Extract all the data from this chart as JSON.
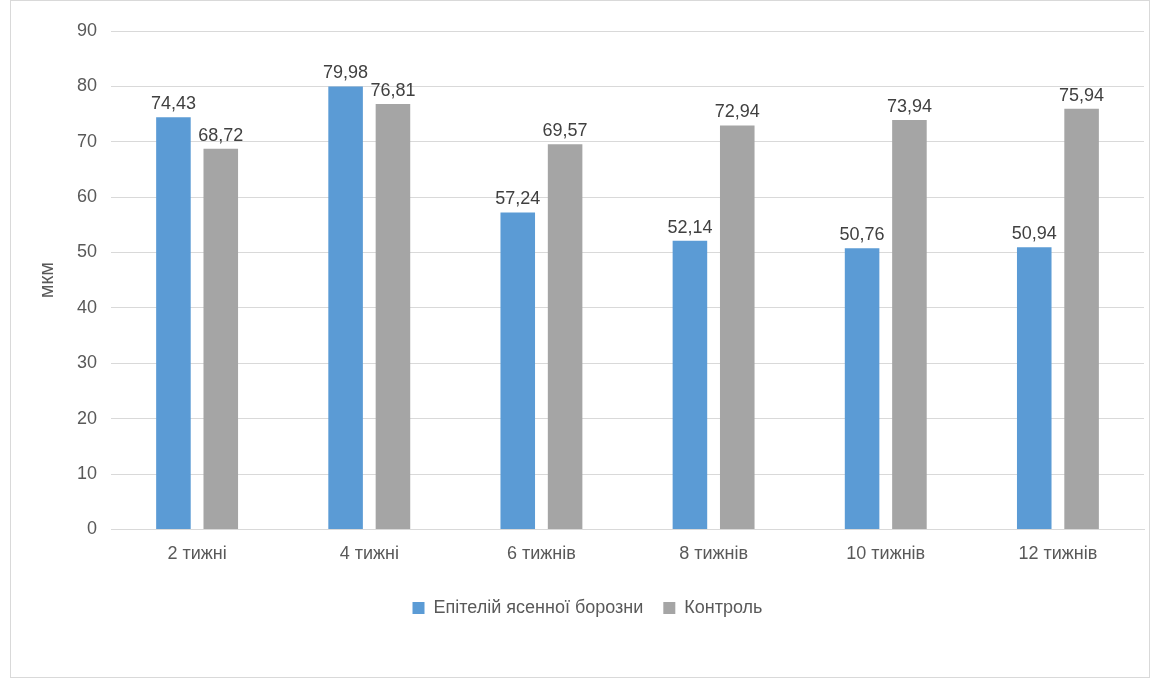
{
  "chart_data": {
    "type": "bar",
    "ylabel": "мкм",
    "categories": [
      "2 тижні",
      "4 тижні",
      "6 тижнів",
      "8 тижнів",
      "10 тижнів",
      "12 тижнів"
    ],
    "series": [
      {
        "name": "Епітелій ясенної борозни",
        "color": "#5b9bd5",
        "values": [
          74.43,
          79.98,
          57.24,
          52.14,
          50.76,
          50.94
        ],
        "value_labels": [
          "74,43",
          "79,98",
          "57,24",
          "52,14",
          "50,76",
          "50,94"
        ]
      },
      {
        "name": "Контроль",
        "color": "#a5a5a5",
        "values": [
          68.72,
          76.81,
          69.57,
          72.94,
          73.94,
          75.94
        ],
        "value_labels": [
          "68,72",
          "76,81",
          "69,57",
          "72,94",
          "73,94",
          "75,94"
        ]
      }
    ],
    "ylim": [
      0,
      90
    ],
    "yticks": [
      0,
      10,
      20,
      30,
      40,
      50,
      60,
      70,
      80,
      90
    ],
    "grid": "y",
    "legend": "bottom"
  }
}
